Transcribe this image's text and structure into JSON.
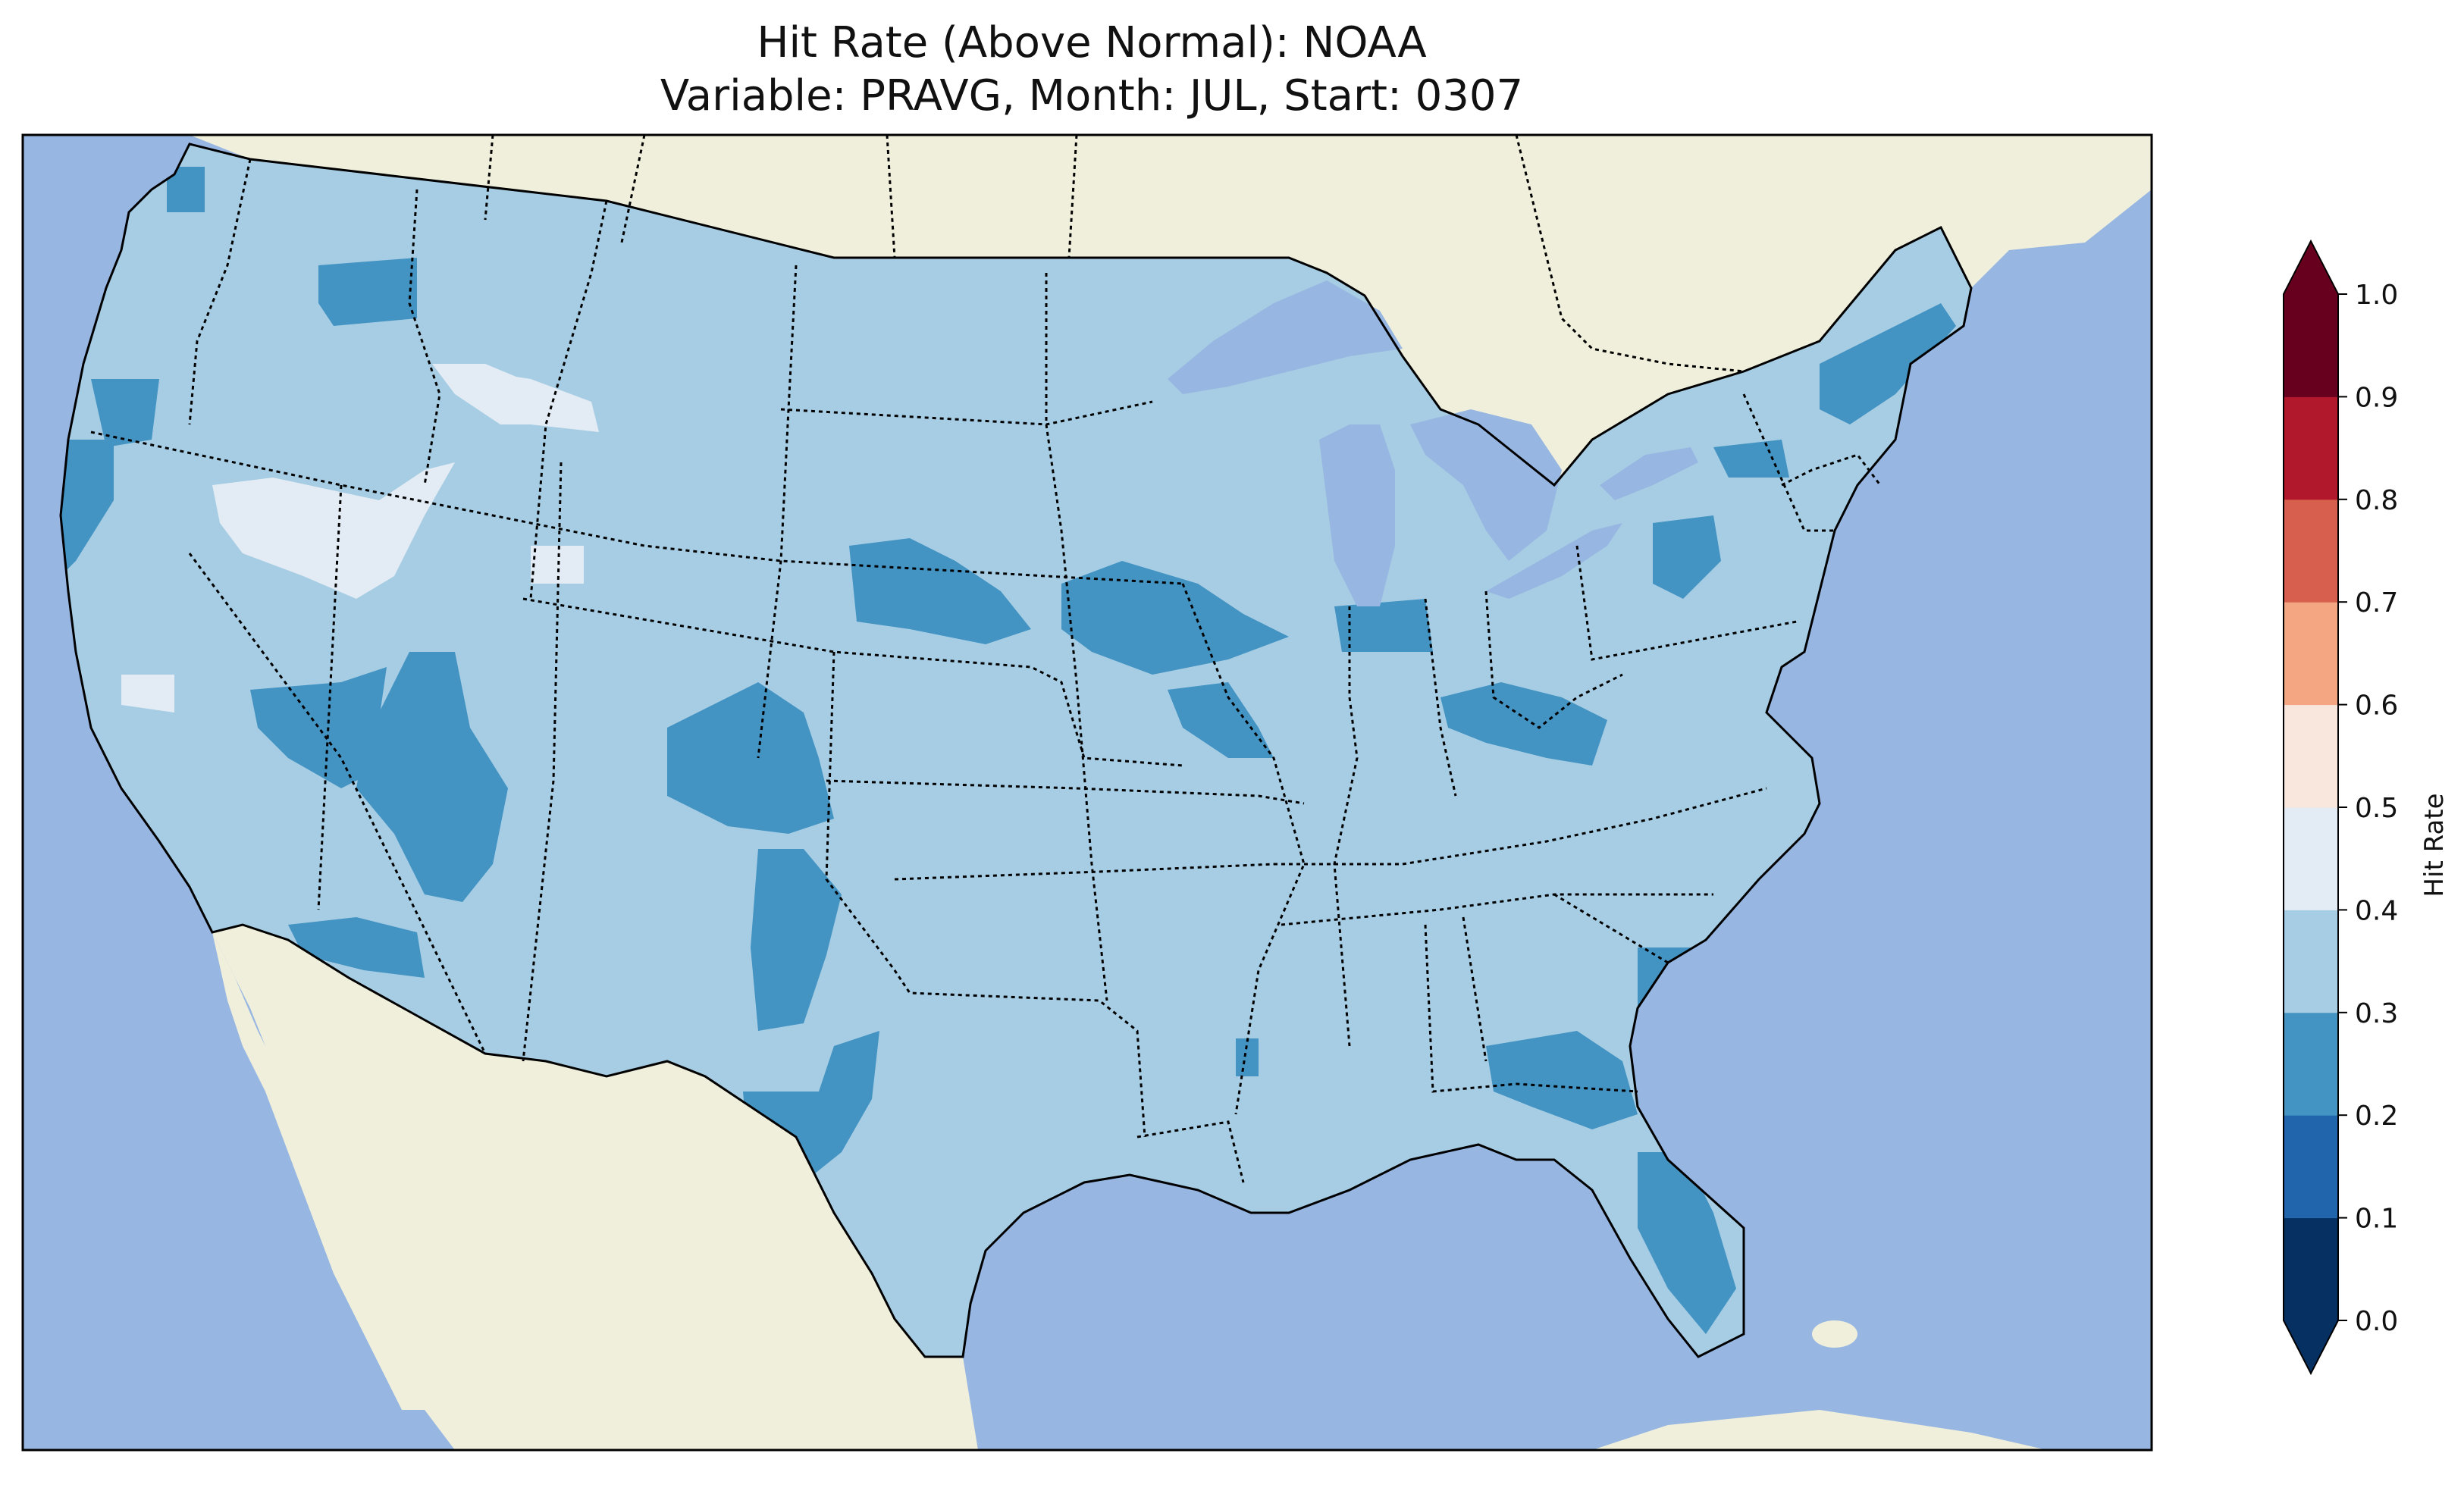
{
  "title": {
    "line1": "Hit Rate (Above Normal): NOAA",
    "line2": "Variable: PRAVG, Month: JUL, Start: 0307"
  },
  "colors": {
    "ocean": "#97b6e1",
    "land": "#efefdb",
    "lake": "#97b6e1",
    "coast": "#000000",
    "border": "#000000"
  },
  "colorbar": {
    "label": "Hit Rate",
    "ticks": [
      "0.0",
      "0.1",
      "0.2",
      "0.3",
      "0.4",
      "0.5",
      "0.6",
      "0.7",
      "0.8",
      "0.9",
      "1.0"
    ],
    "bins": [
      {
        "range": [
          0.0,
          0.1
        ],
        "color": "#053061"
      },
      {
        "range": [
          0.1,
          0.2
        ],
        "color": "#2166ac"
      },
      {
        "range": [
          0.2,
          0.3
        ],
        "color": "#4393c3"
      },
      {
        "range": [
          0.3,
          0.4
        ],
        "color": "#a6cde3"
      },
      {
        "range": [
          0.4,
          0.5
        ],
        "color": "#e3ecf4"
      },
      {
        "range": [
          0.5,
          0.6
        ],
        "color": "#f9e6dc"
      },
      {
        "range": [
          0.6,
          0.7
        ],
        "color": "#f4a582"
      },
      {
        "range": [
          0.7,
          0.8
        ],
        "color": "#d6604d"
      },
      {
        "range": [
          0.8,
          0.9
        ],
        "color": "#b2182b"
      },
      {
        "range": [
          0.9,
          1.0
        ],
        "color": "#67001f"
      }
    ],
    "extend": "both"
  },
  "map": {
    "region": "CONUS",
    "base_value": 0.35,
    "regions": [
      {
        "name": "washington-coast",
        "value": 0.25
      },
      {
        "name": "washington-central",
        "value": 0.25
      },
      {
        "name": "oregon-coast",
        "value": 0.25
      },
      {
        "name": "northern-california-coast",
        "value": 0.25
      },
      {
        "name": "idaho-snake-river",
        "value": 0.45
      },
      {
        "name": "oregon-nevada-border",
        "value": 0.45
      },
      {
        "name": "central-nevada",
        "value": 0.25
      },
      {
        "name": "utah-arizona",
        "value": 0.25
      },
      {
        "name": "southern-california",
        "value": 0.25
      },
      {
        "name": "eastern-colorado",
        "value": 0.25
      },
      {
        "name": "new-mexico-east",
        "value": 0.25
      },
      {
        "name": "south-dakota",
        "value": 0.25
      },
      {
        "name": "iowa",
        "value": 0.25
      },
      {
        "name": "illinois-missouri",
        "value": 0.25
      },
      {
        "name": "indiana",
        "value": 0.25
      },
      {
        "name": "kentucky-ohio",
        "value": 0.25
      },
      {
        "name": "pennsylvania",
        "value": 0.25
      },
      {
        "name": "new-york-upstate",
        "value": 0.25
      },
      {
        "name": "maine-coast",
        "value": 0.25
      },
      {
        "name": "west-texas",
        "value": 0.25
      },
      {
        "name": "georgia",
        "value": 0.25
      },
      {
        "name": "carolina-coast",
        "value": 0.25
      },
      {
        "name": "florida",
        "value": 0.25
      },
      {
        "name": "arkansas",
        "value": 0.25
      },
      {
        "name": "california-bay",
        "value": 0.45
      },
      {
        "name": "wyoming-idaho",
        "value": 0.45
      },
      {
        "name": "utah-north",
        "value": 0.45
      }
    ]
  }
}
